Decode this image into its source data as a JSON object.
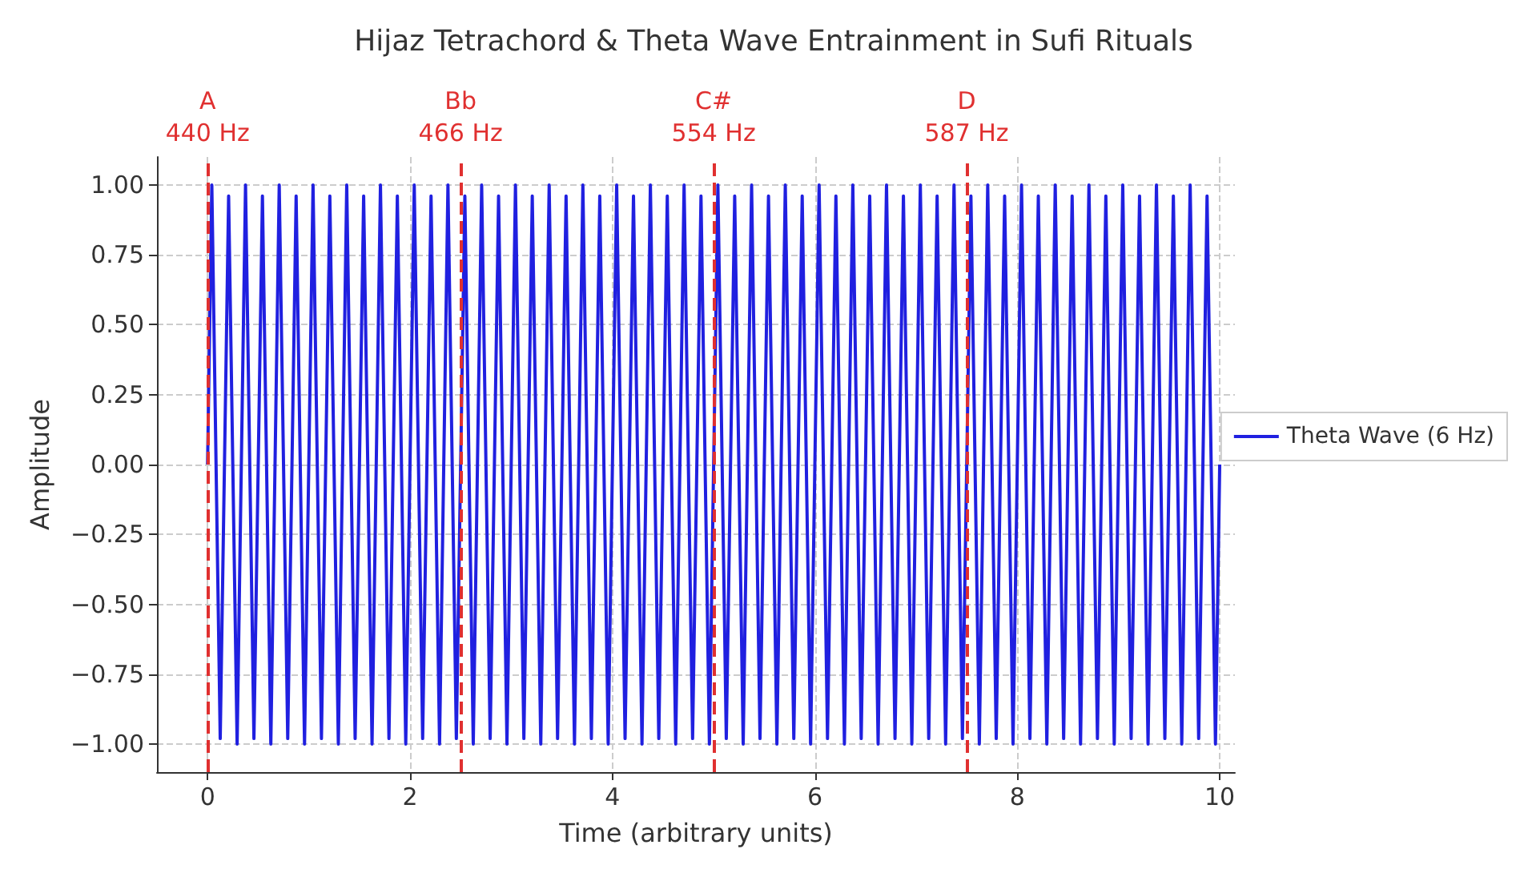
{
  "chart_data": {
    "type": "line",
    "title": "Hijaz Tetrachord & Theta Wave Entrainment in Sufi Rituals",
    "xlabel": "Time (arbitrary units)",
    "ylabel": "Amplitude",
    "xlim": [
      -0.5,
      10.15
    ],
    "xticks": [
      0,
      2,
      4,
      6,
      8,
      10
    ],
    "ylim": [
      -1.1,
      1.1
    ],
    "yticks": [
      {
        "value": -1,
        "label": "−1.00"
      },
      {
        "value": -0.75,
        "label": "−0.75"
      },
      {
        "value": -0.5,
        "label": "−0.50"
      },
      {
        "value": -0.25,
        "label": "−0.25"
      },
      {
        "value": 0,
        "label": "0.00"
      },
      {
        "value": 0.25,
        "label": "0.25"
      },
      {
        "value": 0.5,
        "label": "0.50"
      },
      {
        "value": 0.75,
        "label": "0.75"
      },
      {
        "value": 1,
        "label": "1.00"
      }
    ],
    "grid": true,
    "legend": "right",
    "marker": "none",
    "line_style": "solid",
    "series": [
      {
        "name": "Theta Wave (6 Hz)",
        "color": "#2020e0",
        "x": [
          0,
          0.042,
          0.125,
          0.208,
          0.292,
          0.375,
          0.458,
          0.542,
          0.625,
          0.708,
          0.792,
          0.875,
          0.958,
          1.042,
          1.125,
          1.208,
          1.292,
          1.375,
          1.458,
          1.542,
          1.625,
          1.708,
          1.792,
          1.875,
          1.958,
          2.042,
          2.125,
          2.208,
          2.292,
          2.375,
          2.458,
          2.542,
          2.625,
          2.708,
          2.792,
          2.875,
          2.958,
          3.042,
          3.125,
          3.208,
          3.292,
          3.375,
          3.458,
          3.542,
          3.625,
          3.708,
          3.792,
          3.875,
          3.958,
          4.042,
          4.125,
          4.208,
          4.292,
          4.375,
          4.458,
          4.542,
          4.625,
          4.708,
          4.792,
          4.875,
          4.958,
          5.042,
          5.125,
          5.208,
          5.292,
          5.375,
          5.458,
          5.542,
          5.625,
          5.708,
          5.792,
          5.875,
          5.958,
          6.042,
          6.125,
          6.208,
          6.292,
          6.375,
          6.458,
          6.542,
          6.625,
          6.708,
          6.792,
          6.875,
          6.958,
          7.042,
          7.125,
          7.208,
          7.292,
          7.375,
          7.458,
          7.542,
          7.625,
          7.708,
          7.792,
          7.875,
          7.958,
          8.042,
          8.125,
          8.208,
          8.292,
          8.375,
          8.458,
          8.542,
          8.625,
          8.708,
          8.792,
          8.875,
          8.958,
          9.042,
          9.125,
          9.208,
          9.292,
          9.375,
          9.458,
          9.542,
          9.625,
          9.708,
          9.792,
          9.875,
          9.958,
          10
        ],
        "values": [
          0,
          1,
          -0.98,
          0.96,
          -1,
          1,
          -0.98,
          0.96,
          -1,
          1,
          -0.98,
          0.96,
          -1,
          1,
          -0.98,
          0.96,
          -1,
          1,
          -0.98,
          0.96,
          -1,
          1,
          -0.98,
          0.96,
          -1,
          1,
          -0.98,
          0.96,
          -1,
          1,
          -0.98,
          0.96,
          -1,
          1,
          -0.98,
          0.96,
          -1,
          1,
          -0.98,
          0.96,
          -1,
          1,
          -0.98,
          0.96,
          -1,
          1,
          -0.98,
          0.96,
          -1,
          1,
          -0.98,
          0.96,
          -1,
          1,
          -0.98,
          0.96,
          -1,
          1,
          -0.98,
          0.96,
          -1,
          1,
          -0.98,
          0.96,
          -1,
          1,
          -0.98,
          0.96,
          -1,
          1,
          -0.98,
          0.96,
          -1,
          1,
          -0.98,
          0.96,
          -1,
          1,
          -0.98,
          0.96,
          -1,
          1,
          -0.98,
          0.96,
          -1,
          1,
          -0.98,
          0.96,
          -1,
          1,
          -0.98,
          0.96,
          -1,
          1,
          -0.98,
          0.96,
          -1,
          1,
          -0.98,
          0.96,
          -1,
          1,
          -0.98,
          0.96,
          -1,
          1,
          -0.98,
          0.96,
          -1,
          1,
          -0.98,
          0.96,
          -1,
          1,
          -0.98,
          0.96,
          -1,
          1,
          -0.98,
          0.96,
          -1,
          0
        ]
      }
    ],
    "ref_lines": [
      {
        "axis": "x",
        "value": 0,
        "label": "A\n440 Hz",
        "color": "#e03030",
        "line_style": "dashed"
      },
      {
        "axis": "x",
        "value": 2.5,
        "label": "Bb\n466 Hz",
        "color": "#e03030",
        "line_style": "dashed"
      },
      {
        "axis": "x",
        "value": 5,
        "label": "C#\n554 Hz",
        "color": "#e03030",
        "line_style": "dashed"
      },
      {
        "axis": "x",
        "value": 7.5,
        "label": "D\n587 Hz",
        "color": "#e03030",
        "line_style": "dashed"
      }
    ]
  }
}
